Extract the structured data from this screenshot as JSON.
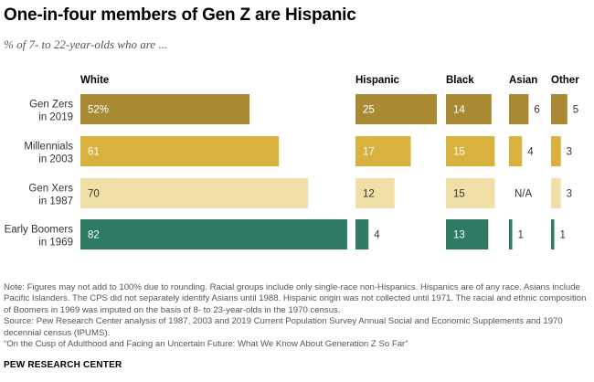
{
  "title": "One-in-four members of Gen Z are Hispanic",
  "subtitle": "% of 7- to 22-year-olds who are ...",
  "chart_data": {
    "type": "bar",
    "orientation": "horizontal",
    "layout": "small-multiples",
    "categories": [
      "Gen Zers in 2019",
      "Millennials in 2003",
      "Gen Xers in 1987",
      "Early Boomers in 1969"
    ],
    "category_lines": [
      [
        "Gen Zers",
        "in 2019"
      ],
      [
        "Millennials",
        "in 2003"
      ],
      [
        "Gen Xers",
        "in 1987"
      ],
      [
        "Early Boomers",
        "in 1969"
      ]
    ],
    "category_colors": [
      "#a98a32",
      "#d8b23d",
      "#f0dfa7",
      "#2f7a65"
    ],
    "series": [
      {
        "name": "White",
        "values": [
          52,
          61,
          70,
          82
        ],
        "labels": [
          "52%",
          "61",
          "70",
          "82"
        ]
      },
      {
        "name": "Hispanic",
        "values": [
          25,
          17,
          12,
          4
        ],
        "labels": [
          "25",
          "17",
          "12",
          "4"
        ]
      },
      {
        "name": "Black",
        "values": [
          14,
          15,
          15,
          13
        ],
        "labels": [
          "14",
          "15",
          "15",
          "13"
        ]
      },
      {
        "name": "Asian",
        "values": [
          6,
          4,
          null,
          1
        ],
        "labels": [
          "6",
          "4",
          "N/A",
          "1"
        ]
      },
      {
        "name": "Other",
        "values": [
          5,
          3,
          3,
          1
        ],
        "labels": [
          "5",
          "3",
          "3",
          "1"
        ]
      }
    ],
    "grid": false,
    "legend": "none"
  },
  "notes": [
    "Note: Figures may not add to 100% due to rounding. Racial groups include only single-race non-Hispanics. Hispanics are of any race. Asians include Pacific Islanders. The CPS did not separately identify Asians until 1988. Hispanic origin was not collected until 1971. The racial and ethnic composition of Boomers in 1969 was imputed on the basis of 8- to 23-year-olds in the 1970 census.",
    "Source: Pew Research Center analysis of 1987, 2003 and 2019 Current Population Survey Annual Social and Economic Supplements and 1970 decennial census (IPUMS).",
    "“On the Cusp of Adulthood and Facing an Uncertain Future: What We Know About Generation Z So Far”"
  ],
  "footer": "PEW RESEARCH CENTER"
}
